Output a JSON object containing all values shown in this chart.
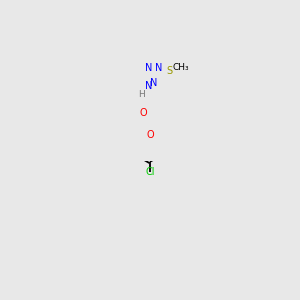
{
  "bg_color": "#e8e8e8",
  "colors": {
    "N": "#0000ff",
    "O": "#ff0000",
    "S": "#999900",
    "Cl": "#00cc00",
    "C": "#000000",
    "H": "#777777",
    "bond": "#000000",
    "bg": "#e8e8e8"
  },
  "bond_lw": 1.3,
  "double_sep": 0.01,
  "font_size": 7.0
}
